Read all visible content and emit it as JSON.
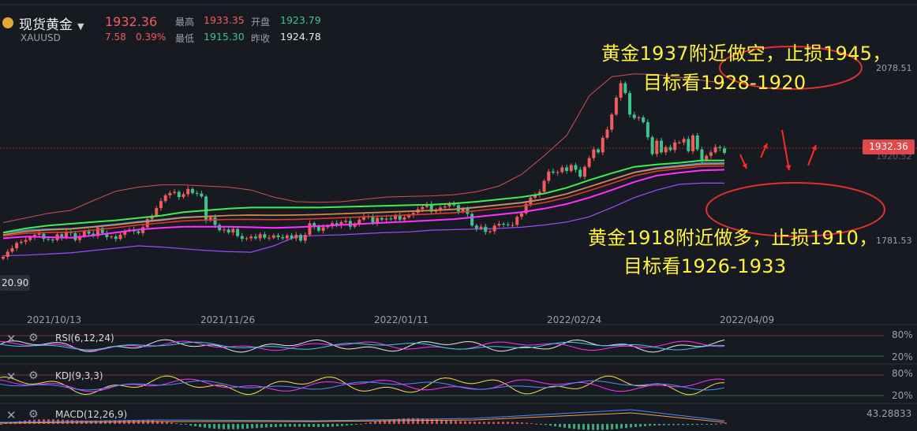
{
  "header": {
    "symbol": "现货黄金",
    "code": "XAUUSD",
    "price": "1932.36",
    "change": "7.58",
    "change_pct": "0.39%",
    "high_label": "最高",
    "high": "1933.35",
    "open_label": "开盘",
    "open": "1923.79",
    "low_label": "最低",
    "low": "1915.30",
    "prev_close_label": "昨收",
    "prev_close": "1924.78"
  },
  "annotations": {
    "short_line1": "黄金1937附近做空，止损1945，",
    "short_line2": "目标看1928-1920",
    "long_line1": "黄金1918附近做多，止损1910，",
    "long_line2": "目标看1926-1933"
  },
  "price_axis": {
    "current": "1932.36",
    "upper": "2078.51",
    "lower": "1781.53",
    "left_partial": "20.90",
    "hidden_partial": "1920.52"
  },
  "indicators": {
    "rsi": "RSI(6,12,24)",
    "kdj": "KDJ(9,3,3)",
    "macd": "MACD(12,26,9)",
    "level_high": "80%",
    "level_low": "20%",
    "macd_value": "43.28833"
  },
  "colors": {
    "background": "#171a21",
    "up": "#f25c5c",
    "down": "#3cc48c",
    "annotation": "#fff23c",
    "ellipse": "#e03030",
    "ma_green": "#3cf050",
    "ma_orange": "#e08a3c",
    "ma_red": "#d83a3a",
    "ma_magenta": "#ff30ff",
    "ma_blue": "#4a8cff",
    "boll_upper": "#d05050",
    "boll_lower": "#9a4cff"
  },
  "chart_data": {
    "type": "candlestick",
    "symbol": "XAUUSD",
    "x_ticks": [
      "2021/10/13",
      "2021/11/26",
      "2022/01/11",
      "2022/02/24",
      "2022/04/09"
    ],
    "y_ticks": [
      2078.51,
      1932.36,
      1781.53
    ],
    "current_price": 1932.36,
    "closes": [
      1753,
      1762,
      1768,
      1777,
      1779,
      1782,
      1787,
      1791,
      1793,
      1784,
      1783,
      1782,
      1792,
      1786,
      1796,
      1794,
      1782,
      1789,
      1797,
      1793,
      1789,
      1803,
      1794,
      1787,
      1788,
      1784,
      1791,
      1798,
      1800,
      1797,
      1794,
      1804,
      1818,
      1824,
      1837,
      1849,
      1859,
      1863,
      1865,
      1856,
      1861,
      1870,
      1863,
      1862,
      1857,
      1816,
      1821,
      1808,
      1799,
      1800,
      1795,
      1801,
      1789,
      1784,
      1785,
      1788,
      1785,
      1792,
      1786,
      1786,
      1790,
      1787,
      1785,
      1790,
      1785,
      1791,
      1781,
      1791,
      1811,
      1805,
      1798,
      1804,
      1806,
      1811,
      1807,
      1813,
      1815,
      1805,
      1810,
      1817,
      1823,
      1823,
      1811,
      1820,
      1817,
      1819,
      1818,
      1825,
      1817,
      1821,
      1825,
      1829,
      1835,
      1839,
      1844,
      1831,
      1834,
      1838,
      1840,
      1845,
      1842,
      1831,
      1836,
      1827,
      1807,
      1802,
      1805,
      1796,
      1797,
      1807,
      1810,
      1809,
      1808,
      1808,
      1822,
      1828,
      1844,
      1855,
      1860,
      1865,
      1884,
      1900,
      1898,
      1899,
      1907,
      1901,
      1911,
      1903,
      1891,
      1908,
      1923,
      1938,
      1933,
      1958,
      1972,
      1998,
      2027,
      2052,
      2035,
      1998,
      1992,
      1993,
      1985,
      1959,
      1930,
      1953,
      1933,
      1942,
      1937,
      1950,
      1950,
      1956,
      1935,
      1962,
      1938,
      1920,
      1927,
      1933,
      1942,
      1940,
      1932
    ],
    "ma_green_series": [
      1795,
      1802,
      1807,
      1810,
      1813,
      1816,
      1820,
      1824,
      1830,
      1833,
      1836,
      1838,
      1838,
      1838,
      1838,
      1839,
      1840,
      1841,
      1842,
      1843,
      1845,
      1848,
      1852,
      1856,
      1862,
      1872,
      1885,
      1897,
      1908,
      1912,
      1915,
      1919,
      1919
    ],
    "ma_magenta_series": [
      1785,
      1788,
      1787,
      1786,
      1790,
      1795,
      1800,
      1803,
      1805,
      1805,
      1805,
      1804,
      1803,
      1804,
      1806,
      1808,
      1810,
      1812,
      1814,
      1816,
      1818,
      1822,
      1826,
      1830,
      1836,
      1844,
      1855,
      1868,
      1882,
      1893,
      1898,
      1902,
      1903
    ],
    "bollinger_upper_series": [
      1812,
      1820,
      1828,
      1833,
      1850,
      1866,
      1873,
      1877,
      1877,
      1875,
      1873,
      1868,
      1856,
      1848,
      1847,
      1848,
      1852,
      1856,
      1857,
      1858,
      1860,
      1865,
      1875,
      1895,
      1927,
      1962,
      2030,
      2063,
      2068,
      2067,
      2062,
      2057,
      2052
    ],
    "bollinger_lower_series": [
      1755,
      1756,
      1758,
      1760,
      1764,
      1768,
      1772,
      1770,
      1767,
      1764,
      1762,
      1761,
      1772,
      1788,
      1790,
      1791,
      1793,
      1795,
      1796,
      1799,
      1800,
      1801,
      1802,
      1804,
      1808,
      1813,
      1822,
      1838,
      1855,
      1868,
      1878,
      1880,
      1880
    ]
  }
}
